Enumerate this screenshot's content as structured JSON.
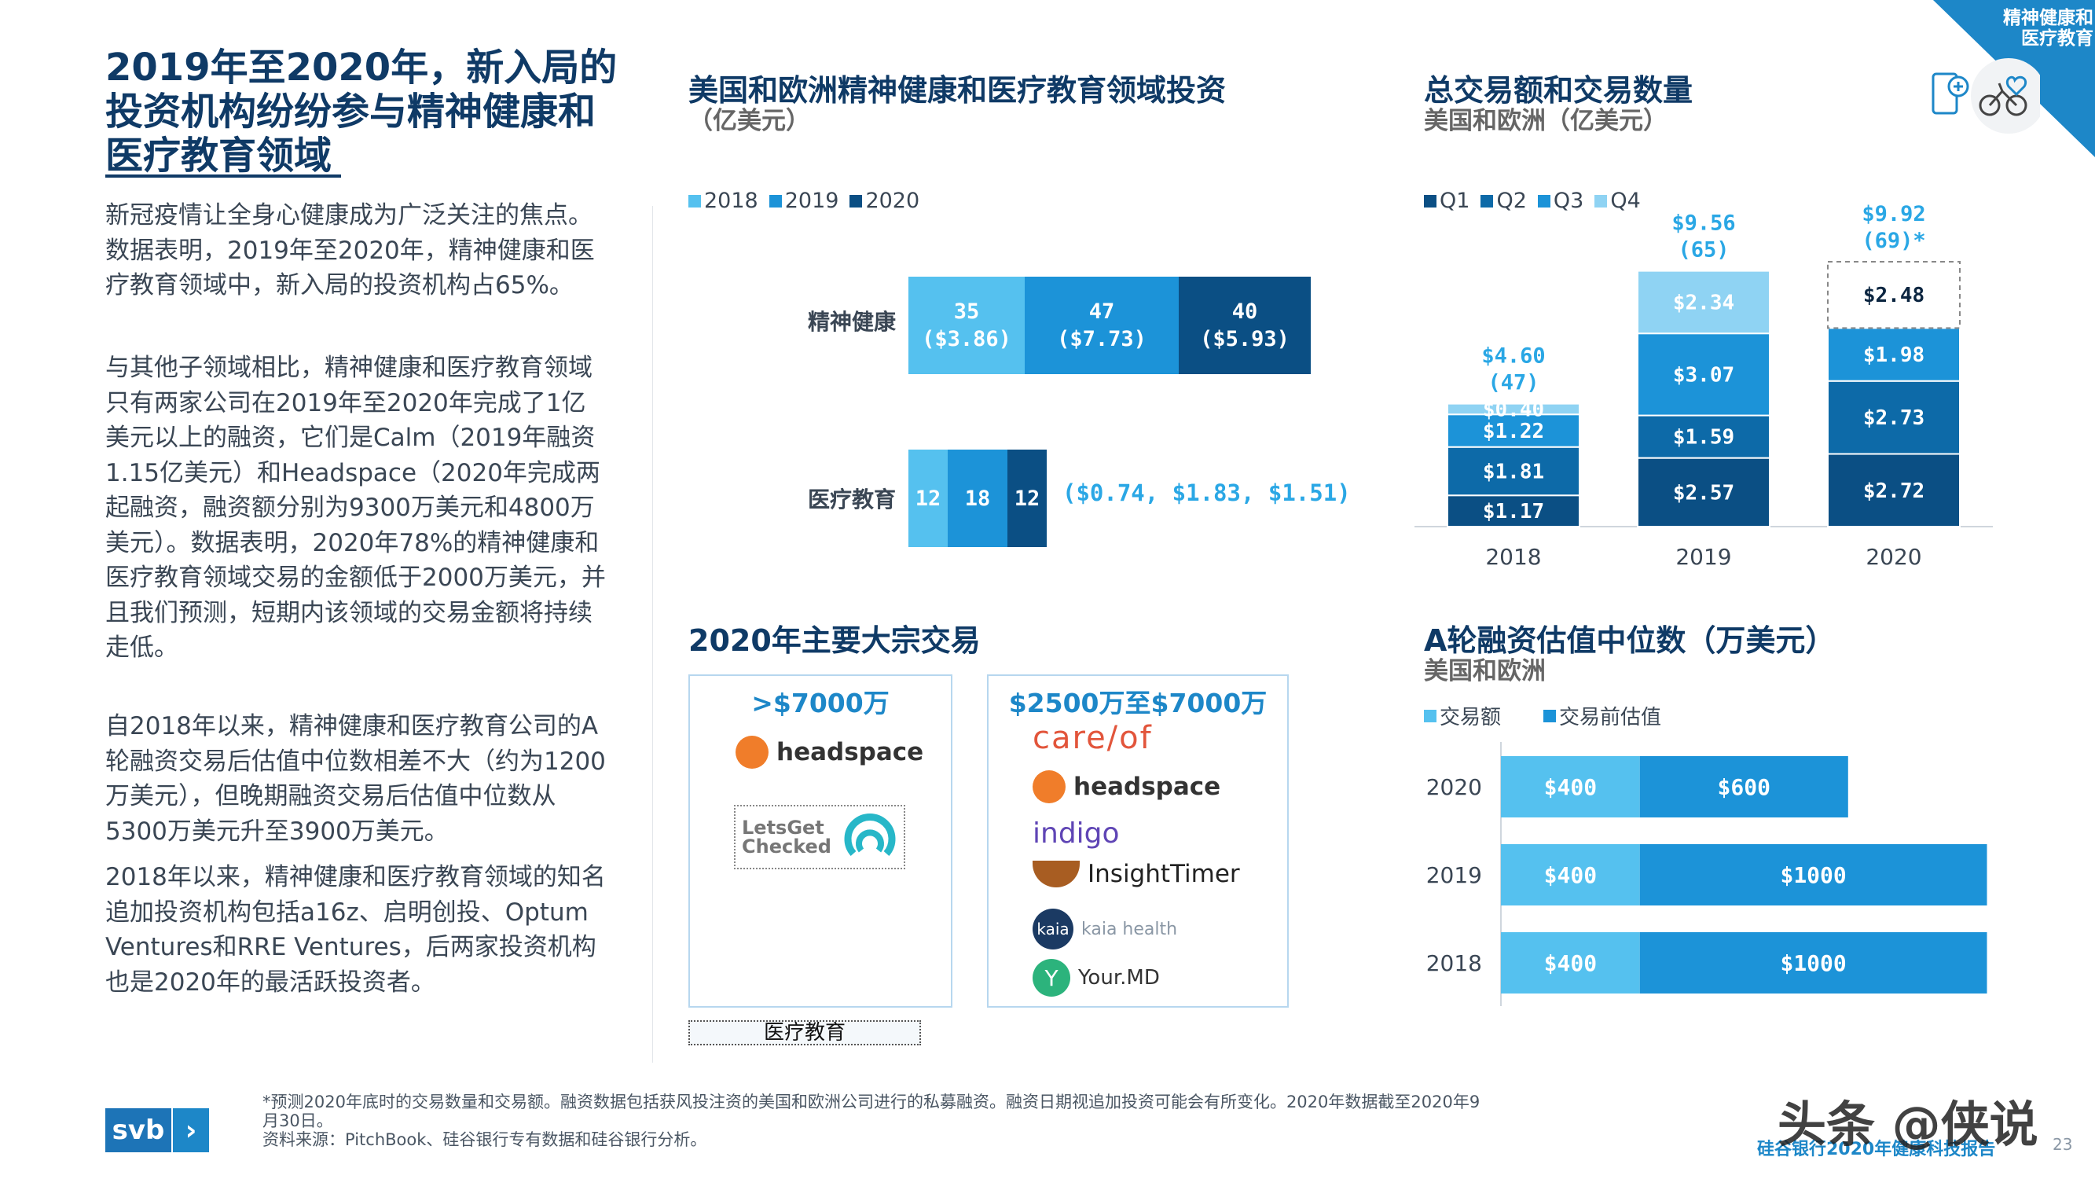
{
  "colors": {
    "navy": "#0f3a66",
    "light": "#55c1ef",
    "mid": "#1c93d8",
    "dark": "#0d6aa8",
    "darkest": "#0b4f84",
    "palest": "#a7dcf5"
  },
  "corner_tag": {
    "line1": "精神健康和",
    "line2": "医疗教育"
  },
  "left": {
    "title_lines": [
      "2019年至2020年，新入局的",
      "投资机构纷纷参与精神健康和",
      "医疗教育领域"
    ],
    "para1": "新冠疫情让全身心健康成为广泛关注的焦点。数据表明，2019年至2020年，精神健康和医疗教育领域中，新入局的投资机构占65%。",
    "para2": "与其他子领域相比，精神健康和医疗教育领域只有两家公司在2019年至2020年完成了1亿美元以上的融资，它们是Calm（2019年融资1.15亿美元）和Headspace（2020年完成两起融资，融资额分别为9300万美元和4800万美元）。数据表明，2020年78%的精神健康和医疗教育领域交易的金额低于2000万美元，并且我们预测，短期内该领域的交易金额将持续走低。",
    "para3": "自2018年以来，精神健康和医疗教育公司的A轮融资交易后估值中位数相差不大（约为1200万美元），但晚期融资交易后估值中位数从5300万美元升至3900万美元。",
    "para4": "2018年以来，精神健康和医疗教育领域的知名追加投资机构包括a16z、启明创投、Optum Ventures和RRE Ventures，后两家投资机构也是2020年的最活跃投资者。"
  },
  "chart_data": [
    {
      "type": "bar",
      "title": "美国和欧洲精神健康和医疗教育领域投资",
      "subtitle": "（亿美元）",
      "legend": [
        "2018",
        "2019",
        "2020"
      ],
      "categories": [
        "精神健康",
        "医疗教育"
      ],
      "series": [
        {
          "name": "2018",
          "counts": [
            35,
            12
          ],
          "amounts": [
            3.86,
            0.74
          ],
          "labels": [
            "35",
            "($3.86)"
          ]
        },
        {
          "name": "2019",
          "counts": [
            47,
            18
          ],
          "amounts": [
            7.73,
            1.83
          ],
          "labels": [
            "47",
            "($7.73)"
          ]
        },
        {
          "name": "2020",
          "counts": [
            40,
            12
          ],
          "amounts": [
            5.93,
            1.51
          ],
          "labels": [
            "40",
            "($5.93)"
          ]
        }
      ],
      "edu_note": "($0.74, $1.83, $1.51)"
    },
    {
      "type": "bar",
      "title": "总交易额和交易数量",
      "subtitle": "美国和欧洲（亿美元）",
      "legend": [
        "Q1",
        "Q2",
        "Q3",
        "Q4"
      ],
      "categories": [
        "2018",
        "2019",
        "2020"
      ],
      "totals": [
        "$4.60",
        "$9.56",
        "$9.92"
      ],
      "counts": [
        "(47)",
        "(65)",
        "(69)*"
      ],
      "series": [
        {
          "name": "Q1",
          "values": [
            1.17,
            2.57,
            2.72
          ],
          "labels": [
            "$1.17",
            "$2.57",
            "$2.72"
          ]
        },
        {
          "name": "Q2",
          "values": [
            1.81,
            1.59,
            2.73
          ],
          "labels": [
            "$1.81",
            "$1.59",
            "$2.73"
          ]
        },
        {
          "name": "Q3",
          "values": [
            1.22,
            3.07,
            1.98
          ],
          "labels": [
            "$1.22",
            "$3.07",
            "$1.98"
          ]
        },
        {
          "name": "Q4",
          "values": [
            0.4,
            2.34,
            2.48
          ],
          "labels": [
            "$0.40",
            "$2.34",
            "$2.48"
          ]
        }
      ]
    },
    {
      "type": "bar",
      "title": "A轮融资估值中位数（万美元）",
      "subtitle": "美国和欧洲",
      "legend": [
        "交易额",
        "交易前估值"
      ],
      "categories": [
        "2020",
        "2019",
        "2018"
      ],
      "series": [
        {
          "name": "交易额",
          "values": [
            400,
            400,
            400
          ],
          "labels": [
            "$400",
            "$400",
            "$400"
          ]
        },
        {
          "name": "交易前估值",
          "values": [
            600,
            1000,
            1000
          ],
          "labels": [
            "$600",
            "$1000",
            "$1000"
          ]
        }
      ]
    }
  ],
  "deals": {
    "title": "2020年主要大宗交易",
    "box1": {
      "head": ">$7000万",
      "logos": [
        "headspace",
        "LetsGet Checked"
      ]
    },
    "box2": {
      "head": "$2500万至$7000万",
      "logos": [
        "care/of",
        "headspace",
        "indigo",
        "InsightTimer",
        "kaia health",
        "Your.MD"
      ]
    },
    "tag": "医疗教育"
  },
  "footer": {
    "logo": "svb",
    "note1": "*预测2020年底时的交易数量和交易额。融资数据包括获风投注资的美国和欧洲公司进行的私募融资。融资日期视追加投资可能会有所变化。2020年数据截至2020年9月30日。",
    "note2": "资料来源：PitchBook、硅谷银行专有数据和硅谷银行分析。",
    "report": "硅谷银行2020年健康科技报告",
    "page": "23",
    "watermark": "头条 @侠说"
  }
}
